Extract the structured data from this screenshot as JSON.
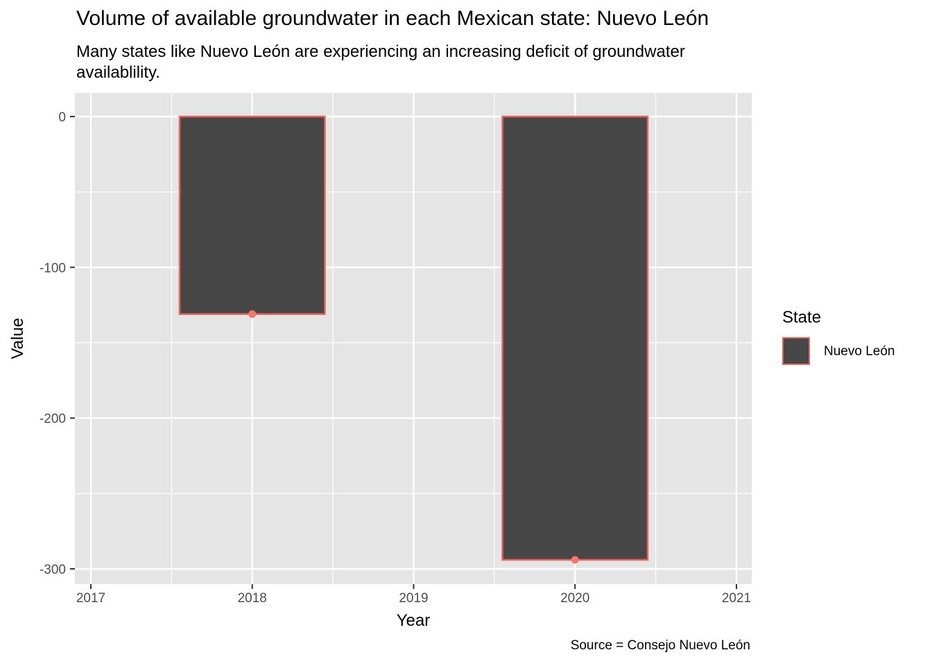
{
  "chart_data": {
    "type": "bar",
    "title": "Volume of available groundwater in each Mexican state: Nuevo León",
    "subtitle": "Many states like Nuevo León are experiencing an increasing deficit of groundwater availablility.",
    "caption": "Source = Consejo Nuevo León",
    "xlabel": "Year",
    "ylabel": "Value",
    "x": [
      2018,
      2020
    ],
    "series": [
      {
        "name": "Nuevo León",
        "values": [
          -131,
          -294
        ]
      }
    ],
    "xlim": [
      2017,
      2021
    ],
    "ylim": [
      -300,
      0
    ],
    "x_ticks": [
      "2017",
      "2018",
      "2019",
      "2020",
      "2021"
    ],
    "y_ticks": [
      "0",
      "-100",
      "-200",
      "-300"
    ],
    "legend_title": "State",
    "legend_position": "right",
    "grid": true,
    "colors": {
      "panel": "#e5e5e5",
      "bar_fill": "#474747",
      "bar_outline": "#e8615a",
      "point": "#f8766d"
    }
  }
}
